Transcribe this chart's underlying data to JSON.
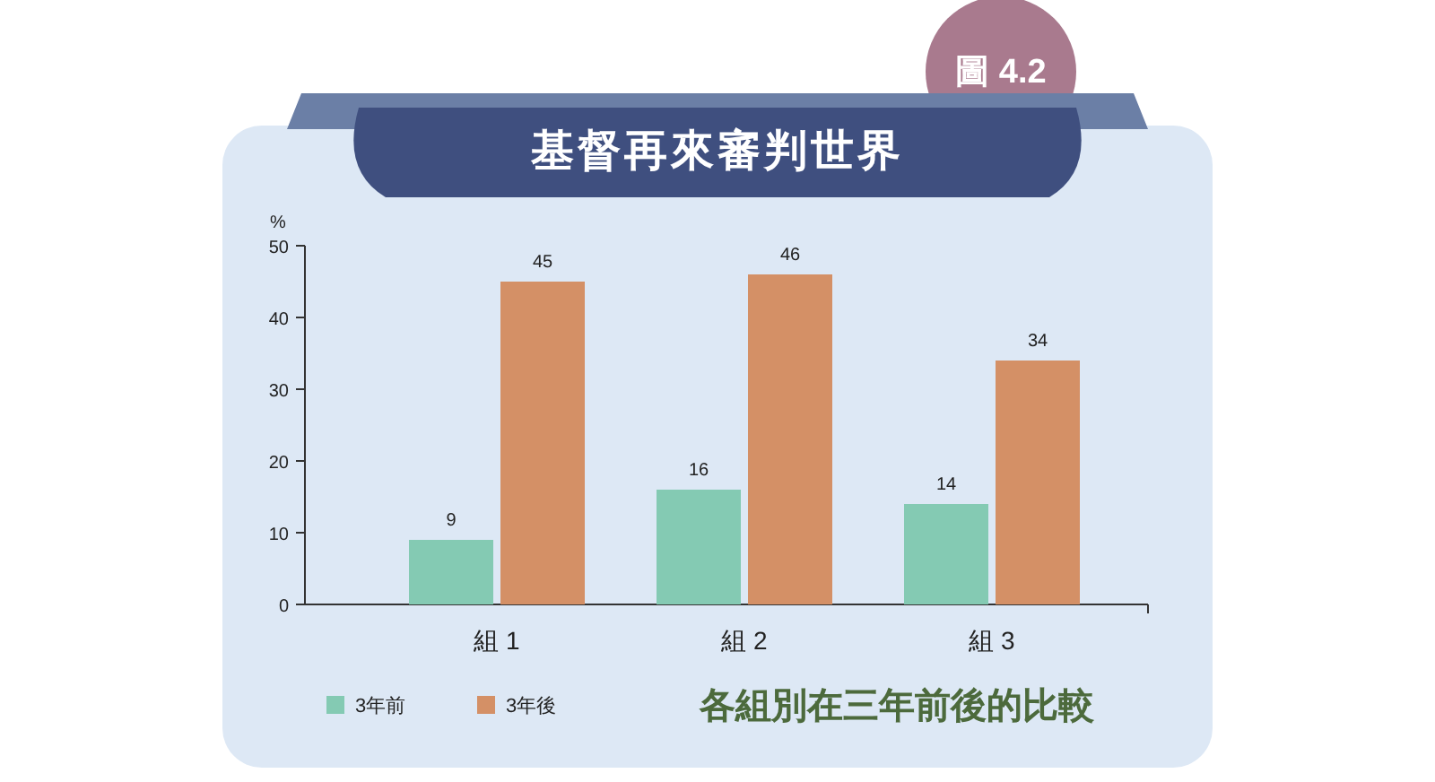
{
  "chart_data": {
    "type": "bar",
    "title": "基督再來審判世界",
    "ylabel": "%",
    "categories": [
      "組 1",
      "組 2",
      "組 3"
    ],
    "series": [
      {
        "name": "3年前",
        "color": "#84cab3",
        "values": [
          9,
          16,
          14
        ]
      },
      {
        "name": "3年後",
        "color": "#d49066",
        "values": [
          45,
          46,
          34
        ]
      }
    ],
    "ylim": [
      0,
      50
    ],
    "yticks": [
      0,
      10,
      20,
      30,
      40,
      50
    ],
    "data_labels": true,
    "legend": "bottom left",
    "grid": false,
    "annotations": [
      "圖 4.2",
      "各組別在三年前後的比較"
    ]
  }
}
